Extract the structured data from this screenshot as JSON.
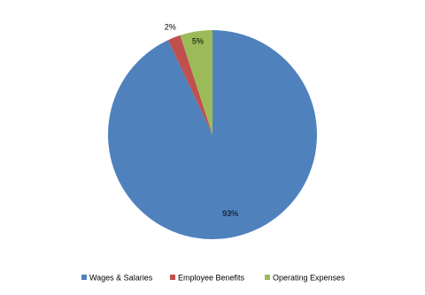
{
  "chart_data": {
    "type": "pie",
    "categories": [
      "Wages & Salaries",
      "Employee Benefits",
      "Operating Expenses"
    ],
    "values": [
      93,
      2,
      5
    ],
    "value_labels": [
      "93%",
      "2%",
      "5%"
    ],
    "colors": [
      "#4f81bd",
      "#c0504d",
      "#9bbb59"
    ],
    "legend": "bottom"
  }
}
